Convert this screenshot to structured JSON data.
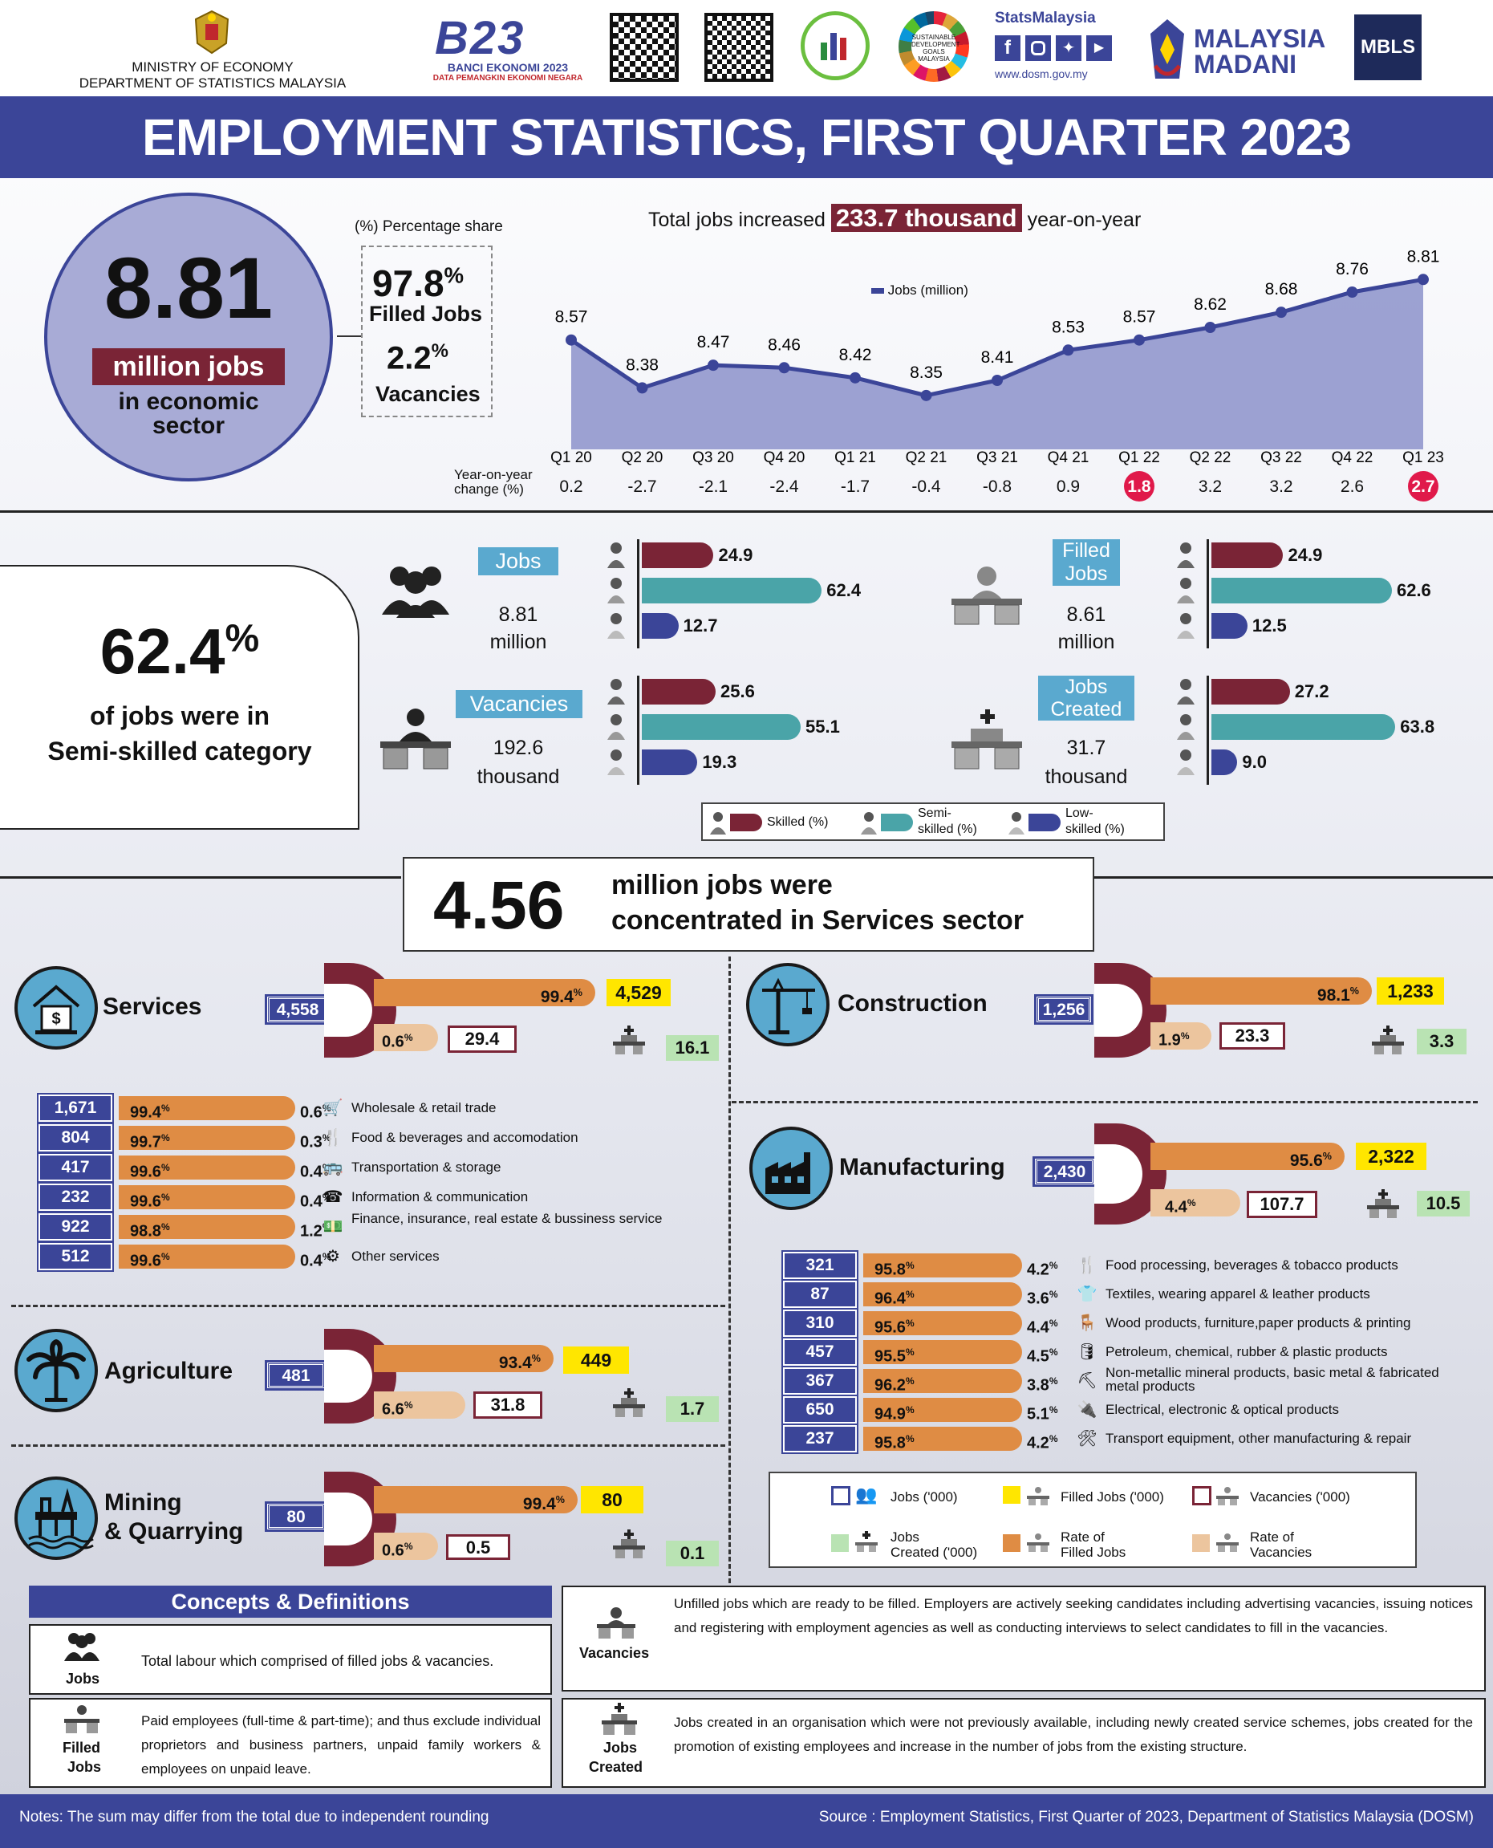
{
  "header": {
    "ministry": "MINISTRY OF ECONOMY",
    "department": "DEPARTMENT OF STATISTICS MALAYSIA",
    "banci_title": "BANCI EKONOMI 2023",
    "banci_sub": "DATA PEMANGKIN EKONOMI NEGARA",
    "banci_logo": "B23",
    "statsmalaysia": "StatsMalaysia",
    "website": "www.dosm.gov.my",
    "madani1": "MALAYSIA",
    "madani2": "MADANI",
    "mbls": "MBLS",
    "sdg": "SUSTAINABLE DEVELOPMENT GOALS MALAYSIA"
  },
  "title": "EMPLOYMENT STATISTICS, FIRST QUARTER 2023",
  "overview": {
    "total_value": "8.81",
    "total_unit": "million jobs",
    "total_desc1": "in economic",
    "total_desc2": "sector",
    "share_label": "(%) Percentage share",
    "filled_pct": "97.8",
    "filled_label": "Filled Jobs",
    "vacancies_pct": "2.2",
    "vacancies_label": "Vacancies",
    "pct_sign": "%"
  },
  "chart_data": {
    "type": "area",
    "title_pre": "Total jobs increased",
    "title_highlight": "233.7 thousand",
    "title_post": "year-on-year",
    "legend": "Jobs (million)",
    "categories": [
      "Q1 20",
      "Q2 20",
      "Q3 20",
      "Q4 20",
      "Q1 21",
      "Q2 21",
      "Q3 21",
      "Q4 21",
      "Q1 22",
      "Q2 22",
      "Q3 22",
      "Q4 22",
      "Q1 23"
    ],
    "values": [
      8.57,
      8.38,
      8.47,
      8.46,
      8.42,
      8.35,
      8.41,
      8.53,
      8.57,
      8.62,
      8.68,
      8.76,
      8.81
    ],
    "value_labels": [
      "8.57",
      "8.38",
      "8.47",
      "8.46",
      "8.42",
      "8.35",
      "8.41",
      "8.53",
      "8.57",
      "8.62",
      "8.68",
      "8.76",
      "8.81"
    ],
    "yoy_label1": "Year-on-year",
    "yoy_label2": "change (%)",
    "yoy": [
      "0.2",
      "-2.7",
      "-2.1",
      "-2.4",
      "-1.7",
      "-0.4",
      "-0.8",
      "0.9",
      "1.8",
      "3.2",
      "3.2",
      "2.6",
      "2.7"
    ],
    "yoy_highlight": [
      false,
      false,
      false,
      false,
      false,
      false,
      false,
      false,
      true,
      false,
      false,
      false,
      true
    ],
    "ylim": [
      8.2,
      8.9
    ]
  },
  "skill": {
    "headline_pct": "62.4",
    "headline_sign": "%",
    "headline_line1": "of jobs were in",
    "headline_line2": "Semi-skilled category",
    "groups": [
      {
        "label": "Jobs",
        "value": "8.81",
        "unit": "million",
        "skilled": 24.9,
        "semi": 62.4,
        "low": 12.7,
        "skilled_l": "24.9",
        "semi_l": "62.4",
        "low_l": "12.7"
      },
      {
        "label": "Filled Jobs",
        "value": "8.61",
        "unit": "million",
        "skilled": 24.9,
        "semi": 62.6,
        "low": 12.5,
        "skilled_l": "24.9",
        "semi_l": "62.6",
        "low_l": "12.5"
      },
      {
        "label": "Vacancies",
        "value": "192.6",
        "unit": "thousand",
        "skilled": 25.6,
        "semi": 55.1,
        "low": 19.3,
        "skilled_l": "25.6",
        "semi_l": "55.1",
        "low_l": "19.3"
      },
      {
        "label": "Jobs Created",
        "value": "31.7",
        "unit": "thousand",
        "skilled": 27.2,
        "semi": 63.8,
        "low": 9.0,
        "skilled_l": "27.2",
        "semi_l": "63.8",
        "low_l": "9.0"
      }
    ],
    "legend": {
      "skilled": "Skilled (%)",
      "semi": "Semi-skilled (%)",
      "low": "Low-skilled (%)"
    },
    "colors": {
      "skilled": "#7a2436",
      "semi": "#4aa4a8",
      "low": "#3b4598"
    }
  },
  "services_banner": {
    "value": "4.56",
    "text1": "million jobs were",
    "text2": "concentrated in Services sector"
  },
  "sectors": {
    "services": {
      "name": "Services",
      "jobs": "4,558",
      "filled_rate": "99.4",
      "filled": "4,529",
      "vac_rate": "0.6",
      "vac": "29.4",
      "created": "16.1"
    },
    "construction": {
      "name": "Construction",
      "jobs": "1,256",
      "filled_rate": "98.1",
      "filled": "1,233",
      "vac_rate": "1.9",
      "vac": "23.3",
      "created": "3.3"
    },
    "manufacturing": {
      "name": "Manufacturing",
      "jobs": "2,430",
      "filled_rate": "95.6",
      "filled": "2,322",
      "vac_rate": "4.4",
      "vac": "107.7",
      "created": "10.5"
    },
    "agriculture": {
      "name": "Agriculture",
      "jobs": "481",
      "filled_rate": "93.4",
      "filled": "449",
      "vac_rate": "6.6",
      "vac": "31.8",
      "created": "1.7"
    },
    "mining": {
      "name1": "Mining",
      "name2": "& Quarrying",
      "jobs": "80",
      "filled_rate": "99.4",
      "filled": "80",
      "vac_rate": "0.6",
      "vac": "0.5",
      "created": "0.1"
    }
  },
  "services_sub": [
    {
      "jobs": "1,671",
      "filled": "99.4",
      "vac": "0.6",
      "label": "Wholesale & retail trade",
      "icon": "cart-icon"
    },
    {
      "jobs": "804",
      "filled": "99.7",
      "vac": "0.3",
      "label": "Food & beverages and accomodation",
      "icon": "food-icon"
    },
    {
      "jobs": "417",
      "filled": "99.6",
      "vac": "0.4",
      "label": "Transportation & storage",
      "icon": "bus-icon"
    },
    {
      "jobs": "232",
      "filled": "99.6",
      "vac": "0.4",
      "label": "Information & communication",
      "icon": "phone-icon"
    },
    {
      "jobs": "922",
      "filled": "98.8",
      "vac": "1.2",
      "label": "Finance, insurance, real estate & bussiness service",
      "icon": "money-icon"
    },
    {
      "jobs": "512",
      "filled": "99.6",
      "vac": "0.4",
      "label": "Other services",
      "icon": "gear-icon"
    }
  ],
  "manufacturing_sub": [
    {
      "jobs": "321",
      "filled": "95.8",
      "vac": "4.2",
      "label": "Food processing, beverages & tobacco products",
      "icon": "food-icon"
    },
    {
      "jobs": "87",
      "filled": "96.4",
      "vac": "3.6",
      "label": "Textiles, wearing apparel & leather products",
      "icon": "shirt-icon"
    },
    {
      "jobs": "310",
      "filled": "95.6",
      "vac": "4.4",
      "label": "Wood products, furniture,paper products & printing",
      "icon": "chair-icon"
    },
    {
      "jobs": "457",
      "filled": "95.5",
      "vac": "4.5",
      "label": "Petroleum, chemical, rubber & plastic products",
      "icon": "barrel-icon"
    },
    {
      "jobs": "367",
      "filled": "96.2",
      "vac": "3.8",
      "label": "Non-metallic mineral products, basic metal & fabricated metal products",
      "icon": "metal-icon"
    },
    {
      "jobs": "650",
      "filled": "94.9",
      "vac": "5.1",
      "label": "Electrical, electronic & optical products",
      "icon": "plug-icon"
    },
    {
      "jobs": "237",
      "filled": "95.8",
      "vac": "4.2",
      "label": "Transport equipment, other manufacturing & repair",
      "icon": "tools-icon"
    }
  ],
  "sector_legend": {
    "jobs": "Jobs ('000)",
    "filled": "Filled Jobs ('000)",
    "vac": "Vacancies ('000)",
    "created": "Jobs Created ('000)",
    "rate_filled": "Rate of Filled Jobs",
    "rate_vac": "Rate of Vacancies"
  },
  "concepts": {
    "title": "Concepts & Definitions",
    "jobs": {
      "label": "Jobs",
      "text": "Total labour which comprised of filled jobs & vacancies."
    },
    "filled": {
      "label1": "Filled",
      "label2": "Jobs",
      "text": "Paid employees (full-time & part-time); and thus exclude individual proprietors and business partners, unpaid family workers & employees on unpaid leave."
    },
    "vacancies": {
      "label": "Vacancies",
      "text": "Unfilled jobs which are ready to be filled. Employers are actively seeking candidates including advertising vacancies, issuing notices and registering with employment agencies as well as conducting interviews to select candidates to fill in the vacancies."
    },
    "created": {
      "label1": "Jobs",
      "label2": "Created",
      "text": "Jobs created in an organisation which were not previously available, including newly created service schemes, jobs created for the promotion of existing employees and increase in the number of jobs from the existing structure."
    }
  },
  "footer": {
    "note": "Notes: The sum may differ from the total due to independent rounding",
    "source": "Source : Employment Statistics, First Quarter of 2023, Department of Statistics Malaysia (DOSM)"
  }
}
